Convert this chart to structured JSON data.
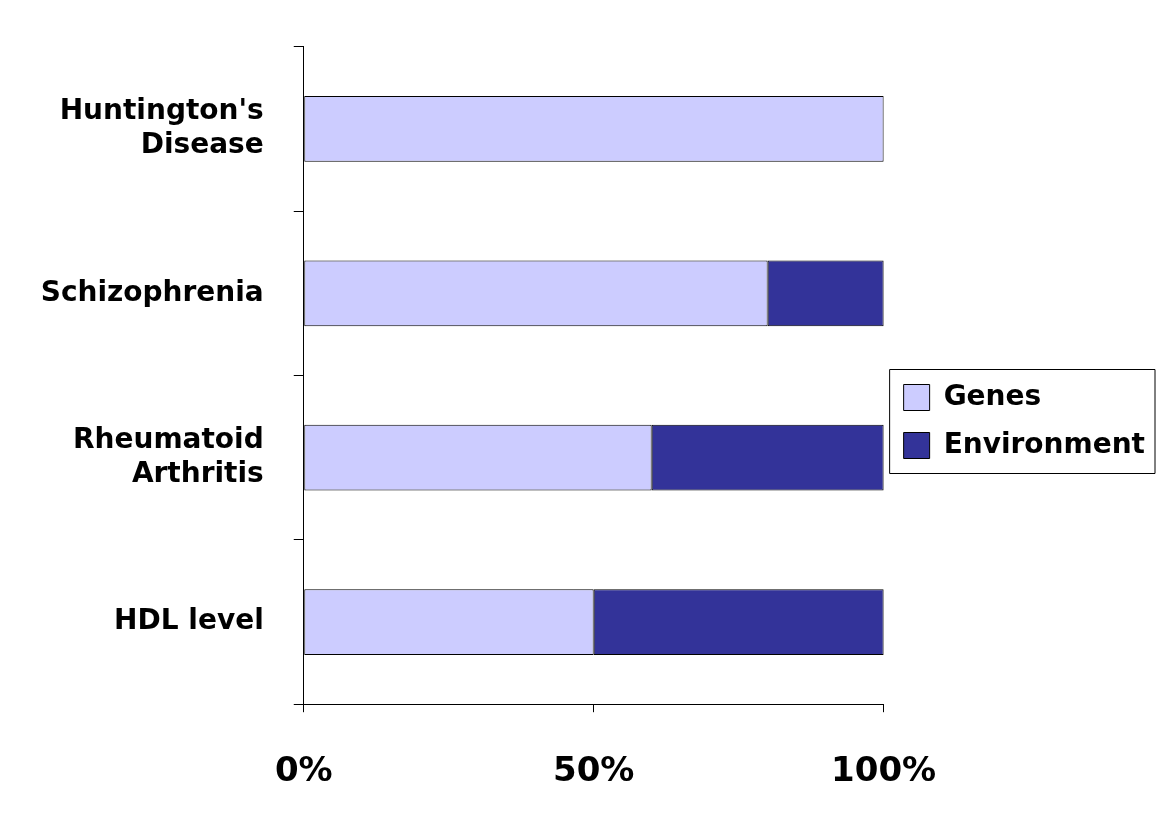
{
  "chart_data": {
    "type": "bar",
    "orientation": "horizontal",
    "stacked": true,
    "categories": [
      "Huntington's\nDisease",
      "Schizophrenia",
      "Rheumatoid\nArthritis",
      "HDL level"
    ],
    "series": [
      {
        "name": "Genes",
        "color": "#ccccff",
        "values": [
          100,
          80,
          60,
          50
        ]
      },
      {
        "name": "Environment",
        "color": "#333399",
        "values": [
          0,
          20,
          40,
          50
        ]
      }
    ],
    "xlim": [
      0,
      100
    ],
    "xticks": [
      {
        "value": 0,
        "label": "0%"
      },
      {
        "value": 50,
        "label": "50%"
      },
      {
        "value": 100,
        "label": "100%"
      }
    ],
    "grid": false,
    "legend": "right"
  }
}
